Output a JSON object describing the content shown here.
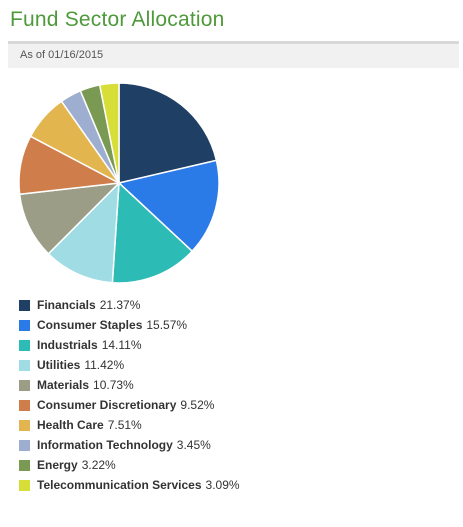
{
  "title": "Fund Sector Allocation",
  "as_of": "As of 01/16/2015",
  "chart_data": {
    "type": "pie",
    "title": "",
    "categories": [
      "Financials",
      "Consumer Staples",
      "Industrials",
      "Utilities",
      "Materials",
      "Consumer Discretionary",
      "Health Care",
      "Information Technology",
      "Energy",
      "Telecommunication Services"
    ],
    "values": [
      21.37,
      15.57,
      14.11,
      11.42,
      10.73,
      9.52,
      7.51,
      3.45,
      3.22,
      3.09
    ],
    "value_labels": [
      "21.37%",
      "15.57%",
      "14.11%",
      "11.42%",
      "10.73%",
      "9.52%",
      "7.51%",
      "3.45%",
      "3.22%",
      "3.09%"
    ],
    "colors": [
      "#1f3f64",
      "#2a7ae8",
      "#2dbbb5",
      "#a0dce3",
      "#9c9d86",
      "#cf7d4b",
      "#e3b54e",
      "#9eaed0",
      "#7a9a54",
      "#d8de38"
    ],
    "legend_position": "bottom-left",
    "start_angle": "top, clockwise"
  }
}
